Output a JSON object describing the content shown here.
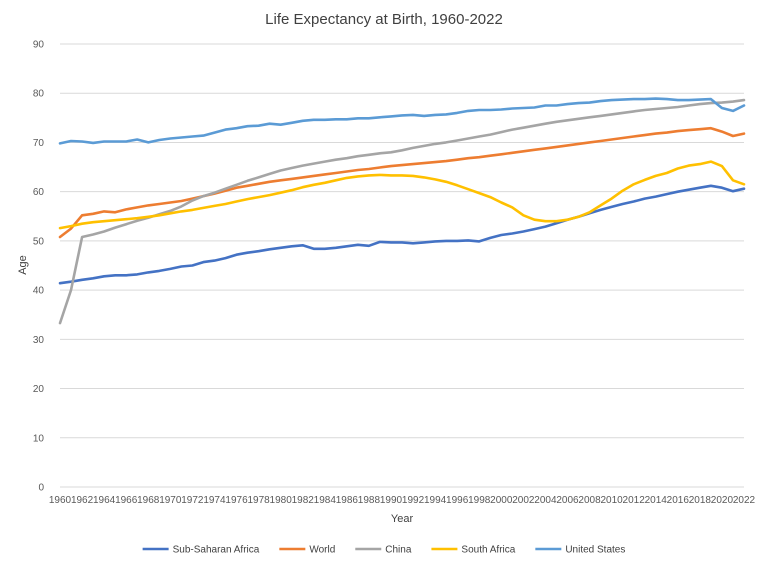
{
  "chart_data": {
    "type": "line",
    "title": "Life Expectancy at Birth, 1960-2022",
    "xlabel": "Year",
    "ylabel": "Age",
    "xlim": [
      1960,
      2022
    ],
    "ylim": [
      0,
      90
    ],
    "ytick_step": 10,
    "xtick_step": 2,
    "grid": "horizontal",
    "legend": "bottom",
    "x": [
      1960,
      1961,
      1962,
      1963,
      1964,
      1965,
      1966,
      1967,
      1968,
      1969,
      1970,
      1971,
      1972,
      1973,
      1974,
      1975,
      1976,
      1977,
      1978,
      1979,
      1980,
      1981,
      1982,
      1983,
      1984,
      1985,
      1986,
      1987,
      1988,
      1989,
      1990,
      1991,
      1992,
      1993,
      1994,
      1995,
      1996,
      1997,
      1998,
      1999,
      2000,
      2001,
      2002,
      2003,
      2004,
      2005,
      2006,
      2007,
      2008,
      2009,
      2010,
      2011,
      2012,
      2013,
      2014,
      2015,
      2016,
      2017,
      2018,
      2019,
      2020,
      2021,
      2022
    ],
    "series": [
      {
        "name": "Sub-Saharan Africa",
        "color": "#4472C4",
        "values": [
          41.4,
          41.7,
          42.1,
          42.4,
          42.8,
          43.0,
          43.0,
          43.2,
          43.6,
          43.9,
          44.3,
          44.8,
          45.0,
          45.7,
          46.0,
          46.5,
          47.2,
          47.6,
          47.9,
          48.3,
          48.6,
          48.9,
          49.1,
          48.4,
          48.4,
          48.6,
          48.9,
          49.2,
          49.0,
          49.8,
          49.7,
          49.7,
          49.5,
          49.7,
          49.9,
          50.0,
          50.0,
          50.1,
          49.9,
          50.6,
          51.2,
          51.5,
          51.9,
          52.4,
          52.9,
          53.6,
          54.3,
          54.9,
          55.6,
          56.3,
          56.9,
          57.5,
          58.0,
          58.6,
          59.0,
          59.5,
          60.0,
          60.4,
          60.8,
          61.2,
          60.8,
          60.1,
          60.6
        ]
      },
      {
        "name": "World",
        "color": "#ED7D31",
        "values": [
          50.8,
          52.5,
          55.2,
          55.5,
          56.0,
          55.8,
          56.4,
          56.8,
          57.2,
          57.5,
          57.8,
          58.1,
          58.6,
          59.1,
          59.6,
          60.2,
          60.8,
          61.2,
          61.6,
          62.0,
          62.3,
          62.6,
          62.9,
          63.2,
          63.5,
          63.8,
          64.1,
          64.4,
          64.6,
          64.9,
          65.2,
          65.4,
          65.6,
          65.8,
          66.0,
          66.2,
          66.5,
          66.8,
          67.0,
          67.3,
          67.6,
          67.9,
          68.2,
          68.5,
          68.8,
          69.1,
          69.4,
          69.7,
          70.0,
          70.3,
          70.6,
          70.9,
          71.2,
          71.5,
          71.8,
          72.0,
          72.3,
          72.5,
          72.7,
          72.9,
          72.2,
          71.3,
          71.8
        ]
      },
      {
        "name": "China",
        "color": "#A5A5A5",
        "values": [
          33.3,
          40.0,
          50.8,
          51.3,
          51.9,
          52.7,
          53.4,
          54.1,
          54.7,
          55.4,
          56.1,
          57.0,
          58.2,
          59.1,
          59.8,
          60.6,
          61.4,
          62.2,
          62.9,
          63.6,
          64.3,
          64.8,
          65.3,
          65.7,
          66.1,
          66.5,
          66.8,
          67.2,
          67.5,
          67.8,
          68.0,
          68.4,
          68.9,
          69.3,
          69.7,
          70.0,
          70.4,
          70.8,
          71.2,
          71.6,
          72.1,
          72.6,
          73.0,
          73.4,
          73.8,
          74.2,
          74.5,
          74.8,
          75.1,
          75.4,
          75.7,
          76.0,
          76.3,
          76.6,
          76.8,
          77.0,
          77.2,
          77.5,
          77.8,
          78.0,
          78.1,
          78.3,
          78.6
        ]
      },
      {
        "name": "South Africa",
        "color": "#FFC000",
        "values": [
          52.6,
          53.0,
          53.5,
          53.8,
          54.0,
          54.2,
          54.4,
          54.6,
          54.9,
          55.2,
          55.6,
          56.0,
          56.3,
          56.7,
          57.1,
          57.5,
          58.0,
          58.5,
          58.9,
          59.3,
          59.8,
          60.3,
          60.9,
          61.4,
          61.8,
          62.3,
          62.8,
          63.1,
          63.3,
          63.4,
          63.3,
          63.3,
          63.2,
          62.9,
          62.5,
          62.0,
          61.3,
          60.5,
          59.7,
          58.9,
          57.8,
          56.8,
          55.2,
          54.3,
          54.0,
          54.0,
          54.3,
          54.9,
          55.8,
          57.2,
          58.6,
          60.2,
          61.5,
          62.4,
          63.2,
          63.8,
          64.7,
          65.3,
          65.6,
          66.1,
          65.2,
          62.3,
          61.5
        ]
      },
      {
        "name": "United States",
        "color": "#5B9BD5",
        "values": [
          69.8,
          70.3,
          70.2,
          69.9,
          70.2,
          70.2,
          70.2,
          70.6,
          70.0,
          70.5,
          70.8,
          71.0,
          71.2,
          71.4,
          72.0,
          72.6,
          72.9,
          73.3,
          73.4,
          73.8,
          73.6,
          74.0,
          74.4,
          74.6,
          74.6,
          74.7,
          74.7,
          74.9,
          74.9,
          75.1,
          75.3,
          75.5,
          75.6,
          75.4,
          75.6,
          75.7,
          76.0,
          76.4,
          76.6,
          76.6,
          76.7,
          76.9,
          77.0,
          77.1,
          77.5,
          77.5,
          77.8,
          78.0,
          78.1,
          78.4,
          78.6,
          78.7,
          78.8,
          78.8,
          78.9,
          78.8,
          78.6,
          78.6,
          78.7,
          78.8,
          77.0,
          76.4,
          77.5
        ]
      }
    ]
  }
}
